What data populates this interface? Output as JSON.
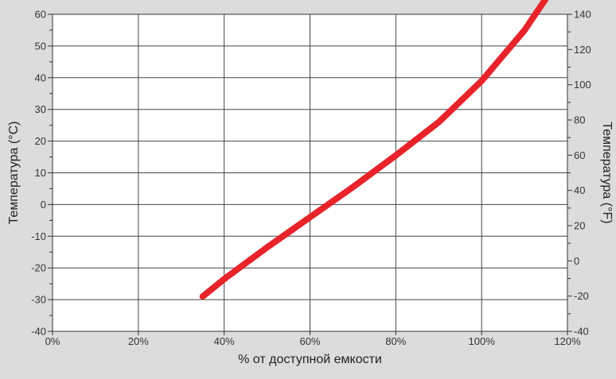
{
  "chart_data": {
    "type": "line",
    "title": "",
    "xlabel": "% от доступной емкости",
    "ylabel": "Температура (°C)",
    "y2label": "Температура (°F)",
    "xlim": [
      0,
      120
    ],
    "ylim": [
      -40,
      60
    ],
    "y2lim": [
      -40,
      140
    ],
    "x_ticks": [
      0,
      20,
      40,
      60,
      80,
      100,
      120
    ],
    "x_tick_labels": [
      "0%",
      "20%",
      "40%",
      "60%",
      "80%",
      "100%",
      "120%"
    ],
    "y_ticks": [
      -40,
      -30,
      -20,
      -10,
      0,
      10,
      20,
      30,
      40,
      50,
      60
    ],
    "y_tick_labels": [
      "-40",
      "-30",
      "-20",
      "-10",
      "0",
      "10",
      "20",
      "30",
      "40",
      "50",
      "60"
    ],
    "y2_ticks": [
      -40,
      -20,
      0,
      20,
      40,
      60,
      80,
      100,
      120,
      140
    ],
    "y2_tick_labels": [
      "-40",
      "-20",
      "0",
      "20",
      "40",
      "60",
      "80",
      "100",
      "120",
      "140"
    ],
    "grid": true,
    "colors": {
      "series": "#e8232a",
      "background": "#dcdcdc",
      "plot": "#ffffff",
      "grid": "#444444"
    },
    "series": [
      {
        "x": [
          35,
          40,
          50,
          60,
          70,
          80,
          90,
          100,
          110,
          116
        ],
        "y": [
          -29,
          -23.5,
          -13.5,
          -4,
          5.5,
          15.5,
          26,
          39,
          55,
          67
        ]
      }
    ]
  }
}
